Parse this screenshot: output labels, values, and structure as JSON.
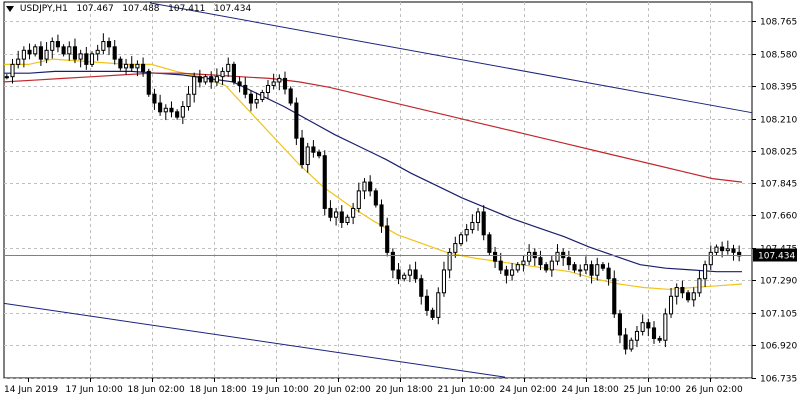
{
  "header": {
    "symbol": "USDJPY,H1",
    "open": "107.467",
    "high": "107.488",
    "low": "107.411",
    "close": "107.434"
  },
  "colors": {
    "background": "#ffffff",
    "grid": "#c0c0c0",
    "candles": "#000000",
    "ma_fast": "#f0c419",
    "ma_mid": "#1a1f6b",
    "ma_slow": "#c0282d",
    "trendline": "#1a237e",
    "price_label_bg": "#000000",
    "price_label_text": "#ffffff"
  },
  "chart_data": {
    "type": "candlestick",
    "instrument": "USDJPY",
    "timeframe": "H1",
    "grid": true,
    "ylim": [
      106.735,
      108.875
    ],
    "y_ticks": [
      "108.765",
      "108.580",
      "108.395",
      "108.210",
      "108.025",
      "107.845",
      "107.660",
      "107.475",
      "107.290",
      "107.105",
      "106.920",
      "106.735"
    ],
    "x_ticks": [
      "14 Jun 2019",
      "17 Jun 10:00",
      "18 Jun 02:00",
      "18 Jun 18:00",
      "19 Jun 10:00",
      "20 Jun 02:00",
      "20 Jun 18:00",
      "21 Jun 10:00",
      "24 Jun 02:00",
      "24 Jun 18:00",
      "25 Jun 10:00",
      "26 Jun 02:00"
    ],
    "current_price": "107.434",
    "closes": [
      108.45,
      108.52,
      108.55,
      108.6,
      108.58,
      108.62,
      108.55,
      108.6,
      108.65,
      108.62,
      108.58,
      108.62,
      108.55,
      108.58,
      108.52,
      108.58,
      108.6,
      108.65,
      108.62,
      108.55,
      108.5,
      108.52,
      108.5,
      108.52,
      108.48,
      108.35,
      108.3,
      108.25,
      108.27,
      108.25,
      108.22,
      108.28,
      108.35,
      108.45,
      108.42,
      108.45,
      108.42,
      108.45,
      108.48,
      108.52,
      108.42,
      108.4,
      108.35,
      108.3,
      108.32,
      108.36,
      108.4,
      108.42,
      108.44,
      108.38,
      108.3,
      108.1,
      107.95,
      108.05,
      108.02,
      108.0,
      107.7,
      107.65,
      107.68,
      107.62,
      107.65,
      107.7,
      107.8,
      107.85,
      107.8,
      107.72,
      107.6,
      107.45,
      107.35,
      107.3,
      107.32,
      107.35,
      107.3,
      107.2,
      107.12,
      107.08,
      107.22,
      107.35,
      107.45,
      107.5,
      107.55,
      107.58,
      107.62,
      107.68,
      107.55,
      107.45,
      107.4,
      107.35,
      107.32,
      107.35,
      107.38,
      107.4,
      107.45,
      107.42,
      107.38,
      107.35,
      107.4,
      107.45,
      107.42,
      107.38,
      107.35,
      107.35,
      107.38,
      107.32,
      107.38,
      107.36,
      107.3,
      107.1,
      106.98,
      106.9,
      106.95,
      107.0,
      107.05,
      107.02,
      106.96,
      106.95,
      107.1,
      107.2,
      107.25,
      107.22,
      107.18,
      107.22,
      107.3,
      107.38,
      107.45,
      107.48,
      107.46,
      107.47,
      107.45,
      107.43
    ],
    "series": [
      {
        "label_color": "#f0c419",
        "values": [
          108.52,
          108.52,
          108.55,
          108.54,
          108.53,
          108.52,
          108.52,
          108.48,
          108.45,
          108.4,
          108.25,
          108.1,
          107.95,
          107.82,
          107.72,
          107.63,
          107.55,
          107.5,
          107.45,
          107.42,
          107.4,
          107.38,
          107.36,
          107.34,
          107.3,
          107.27,
          107.25,
          107.24,
          107.25,
          107.26,
          107.27
        ]
      },
      {
        "label_color": "#1a1f6b",
        "values": [
          108.47,
          108.47,
          108.48,
          108.48,
          108.48,
          108.48,
          108.47,
          108.46,
          108.44,
          108.42,
          108.35,
          108.28,
          108.2,
          108.12,
          108.05,
          107.98,
          107.9,
          107.83,
          107.76,
          107.7,
          107.64,
          107.59,
          107.54,
          107.48,
          107.43,
          107.38,
          107.36,
          107.35,
          107.34,
          107.34
        ]
      },
      {
        "label_color": "#c0282d",
        "values": [
          108.42,
          108.43,
          108.44,
          108.45,
          108.46,
          108.47,
          108.47,
          108.46,
          108.45,
          108.44,
          108.42,
          108.39,
          108.35,
          108.31,
          108.27,
          108.23,
          108.19,
          108.15,
          108.11,
          108.07,
          108.03,
          107.99,
          107.95,
          107.91,
          107.87,
          107.85
        ]
      }
    ]
  }
}
